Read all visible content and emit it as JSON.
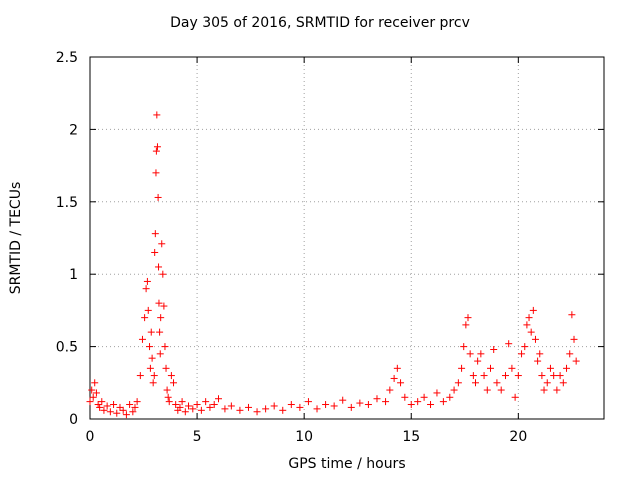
{
  "chart_data": {
    "type": "scatter",
    "title": "Day 305 of 2016, SRMTID for receiver prcv",
    "xlabel": "GPS time / hours",
    "ylabel": "SRMTID / TECUs",
    "xlim": [
      0,
      24
    ],
    "ylim": [
      0,
      2.5
    ],
    "xticks": [
      0,
      5,
      10,
      15,
      20
    ],
    "yticks": [
      0,
      0.5,
      1,
      1.5,
      2,
      2.5
    ],
    "xtick_labels": [
      "0",
      "5",
      "10",
      "15",
      "20"
    ],
    "ytick_labels": [
      "0",
      "0.5",
      "1",
      "1.5",
      "2",
      "2.5"
    ],
    "grid": true,
    "marker": "+",
    "color": "#ff0000",
    "series": [
      {
        "name": "SRMTID",
        "x": [
          0.0,
          0.08,
          0.15,
          0.22,
          0.3,
          0.38,
          0.45,
          0.55,
          0.65,
          0.8,
          0.95,
          1.1,
          1.25,
          1.4,
          1.55,
          1.7,
          1.85,
          2.0,
          2.1,
          2.2,
          2.35,
          2.45,
          2.55,
          2.62,
          2.68,
          2.72,
          2.78,
          2.82,
          2.86,
          2.9,
          2.95,
          3.0,
          3.02,
          3.05,
          3.08,
          3.1,
          3.12,
          3.15,
          3.18,
          3.2,
          3.22,
          3.25,
          3.28,
          3.3,
          3.35,
          3.4,
          3.45,
          3.5,
          3.55,
          3.6,
          3.65,
          3.7,
          3.8,
          3.9,
          4.0,
          4.1,
          4.2,
          4.3,
          4.45,
          4.6,
          4.8,
          5.0,
          5.2,
          5.4,
          5.6,
          5.8,
          6.0,
          6.3,
          6.6,
          7.0,
          7.4,
          7.8,
          8.2,
          8.6,
          9.0,
          9.4,
          9.8,
          10.2,
          10.6,
          11.0,
          11.4,
          11.8,
          12.2,
          12.6,
          13.0,
          13.4,
          13.8,
          14.0,
          14.2,
          14.35,
          14.5,
          14.7,
          15.0,
          15.3,
          15.6,
          15.9,
          16.2,
          16.5,
          16.8,
          17.0,
          17.2,
          17.35,
          17.45,
          17.55,
          17.65,
          17.75,
          17.9,
          18.0,
          18.1,
          18.25,
          18.4,
          18.55,
          18.7,
          18.85,
          19.0,
          19.2,
          19.4,
          19.55,
          19.7,
          19.85,
          20.0,
          20.15,
          20.3,
          20.4,
          20.5,
          20.6,
          20.7,
          20.8,
          20.9,
          21.0,
          21.1,
          21.2,
          21.35,
          21.5,
          21.65,
          21.8,
          21.95,
          22.1,
          22.25,
          22.4,
          22.5,
          22.6,
          22.7
        ],
        "y": [
          0.12,
          0.2,
          0.15,
          0.25,
          0.18,
          0.1,
          0.08,
          0.12,
          0.06,
          0.09,
          0.05,
          0.1,
          0.04,
          0.08,
          0.06,
          0.03,
          0.1,
          0.05,
          0.08,
          0.12,
          0.3,
          0.55,
          0.7,
          0.9,
          0.95,
          0.75,
          0.5,
          0.35,
          0.6,
          0.42,
          0.25,
          0.3,
          1.15,
          1.28,
          1.7,
          1.85,
          2.1,
          1.88,
          1.53,
          1.05,
          0.8,
          0.6,
          0.45,
          0.7,
          1.21,
          1.0,
          0.78,
          0.5,
          0.35,
          0.2,
          0.15,
          0.12,
          0.3,
          0.25,
          0.1,
          0.06,
          0.08,
          0.12,
          0.05,
          0.09,
          0.07,
          0.1,
          0.06,
          0.12,
          0.08,
          0.1,
          0.14,
          0.07,
          0.09,
          0.06,
          0.08,
          0.05,
          0.07,
          0.09,
          0.06,
          0.1,
          0.08,
          0.12,
          0.07,
          0.1,
          0.09,
          0.13,
          0.08,
          0.11,
          0.1,
          0.14,
          0.12,
          0.2,
          0.28,
          0.35,
          0.25,
          0.15,
          0.1,
          0.12,
          0.15,
          0.1,
          0.18,
          0.12,
          0.15,
          0.2,
          0.25,
          0.35,
          0.5,
          0.65,
          0.7,
          0.45,
          0.3,
          0.25,
          0.4,
          0.45,
          0.3,
          0.2,
          0.35,
          0.48,
          0.25,
          0.2,
          0.3,
          0.52,
          0.35,
          0.15,
          0.3,
          0.45,
          0.5,
          0.65,
          0.7,
          0.6,
          0.75,
          0.55,
          0.4,
          0.45,
          0.3,
          0.2,
          0.25,
          0.35,
          0.3,
          0.2,
          0.3,
          0.25,
          0.35,
          0.45,
          0.72,
          0.55,
          0.4
        ]
      }
    ]
  }
}
